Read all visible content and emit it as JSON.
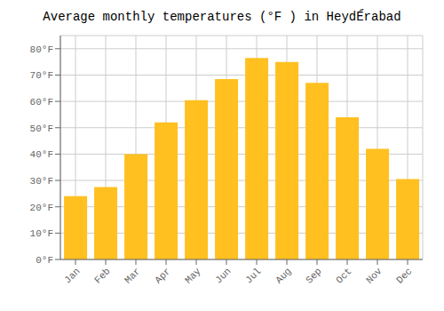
{
  "chart_data": {
    "type": "bar",
    "title": "Average monthly temperatures (°F ) in HeydÉ́rabad",
    "categories": [
      "Jan",
      "Feb",
      "Mar",
      "Apr",
      "May",
      "Jun",
      "Jul",
      "Aug",
      "Sep",
      "Oct",
      "Nov",
      "Dec"
    ],
    "values": [
      24,
      27.5,
      40,
      52,
      60.5,
      68.5,
      76.5,
      75,
      67,
      54,
      42,
      30.5
    ],
    "color": "#FFC020",
    "ylim": [
      0,
      85
    ],
    "yticks": [
      {
        "value": 0,
        "label": "0°F"
      },
      {
        "value": 10,
        "label": "10°F"
      },
      {
        "value": 20,
        "label": "20°F"
      },
      {
        "value": 30,
        "label": "30°F"
      },
      {
        "value": 40,
        "label": "40°F"
      },
      {
        "value": 50,
        "label": "50°F"
      },
      {
        "value": 60,
        "label": "60°F"
      },
      {
        "value": 70,
        "label": "70°F"
      },
      {
        "value": 80,
        "label": "80°F"
      }
    ],
    "grid": true
  }
}
